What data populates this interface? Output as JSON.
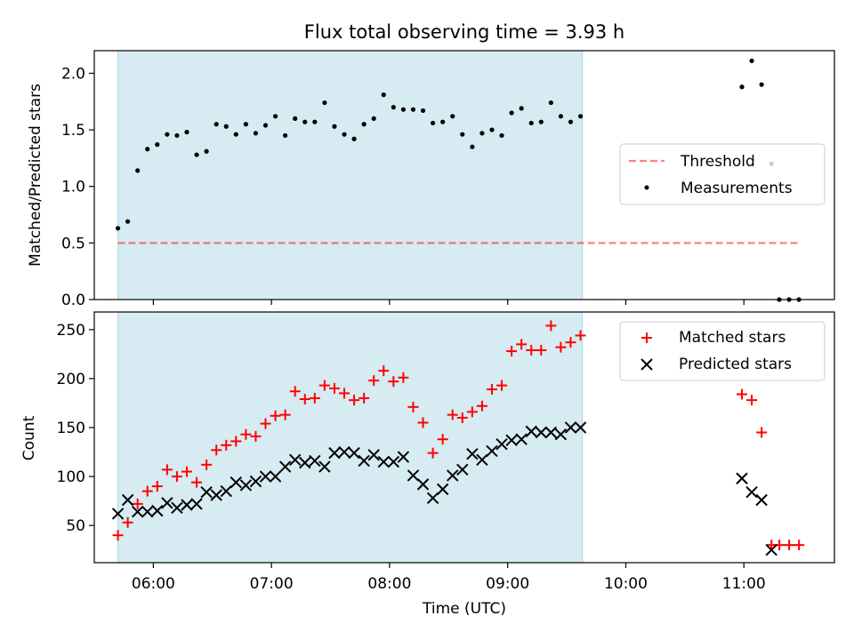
{
  "figure_title": "Flux total observing time = 3.93 h",
  "colors": {
    "shade": "#add8e6",
    "threshold": "#ff0000",
    "matched": "#ff0000",
    "predicted": "#000000",
    "measurement": "#000000"
  },
  "chart_data": [
    {
      "type": "scatter",
      "x_type": "time",
      "xlim": [
        "05:30",
        "11:46"
      ],
      "ylim": [
        0,
        2.2
      ],
      "ylabel": "Matched/Predicted stars",
      "yticks": [
        "0.0",
        "0.5",
        "1.0",
        "1.5",
        "2.0"
      ],
      "y_tick_values": [
        0,
        0.5,
        1.0,
        1.5,
        2.0
      ],
      "shaded_span": [
        "05:42",
        "09:38"
      ],
      "legend_position": "center right",
      "threshold": {
        "name": "Threshold",
        "value": 0.5,
        "x": [
          "05:42",
          "11:28"
        ],
        "style": "dashed"
      },
      "series": [
        {
          "name": "Measurements",
          "x": [
            "05:42",
            "05:47",
            "05:52",
            "05:57",
            "06:02",
            "06:07",
            "06:12",
            "06:17",
            "06:22",
            "06:27",
            "06:32",
            "06:37",
            "06:42",
            "06:47",
            "06:52",
            "06:57",
            "07:02",
            "07:07",
            "07:12",
            "07:17",
            "07:22",
            "07:27",
            "07:32",
            "07:37",
            "07:42",
            "07:47",
            "07:52",
            "07:57",
            "08:02",
            "08:07",
            "08:12",
            "08:17",
            "08:22",
            "08:27",
            "08:32",
            "08:37",
            "08:42",
            "08:47",
            "08:52",
            "08:57",
            "09:02",
            "09:07",
            "09:12",
            "09:17",
            "09:22",
            "09:27",
            "09:32",
            "09:37",
            "10:59",
            "11:04",
            "11:09",
            "11:14",
            "11:18",
            "11:23",
            "11:28"
          ],
          "y": [
            0.63,
            0.69,
            1.14,
            1.33,
            1.37,
            1.46,
            1.45,
            1.48,
            1.28,
            1.31,
            1.55,
            1.53,
            1.46,
            1.55,
            1.47,
            1.54,
            1.62,
            1.45,
            1.6,
            1.57,
            1.57,
            1.74,
            1.53,
            1.46,
            1.42,
            1.55,
            1.6,
            1.81,
            1.7,
            1.68,
            1.68,
            1.67,
            1.56,
            1.57,
            1.62,
            1.46,
            1.35,
            1.47,
            1.5,
            1.45,
            1.65,
            1.69,
            1.56,
            1.57,
            1.74,
            1.62,
            1.57,
            1.62,
            1.88,
            2.11,
            1.9,
            1.2,
            0.0,
            0.0,
            0.0
          ]
        }
      ]
    },
    {
      "type": "scatter",
      "x_type": "time",
      "xlim": [
        "05:30",
        "11:46"
      ],
      "ylim": [
        12,
        268
      ],
      "xlabel": "Time (UTC)",
      "ylabel": "Count",
      "xticks": [
        "06:00",
        "07:00",
        "08:00",
        "09:00",
        "10:00",
        "11:00"
      ],
      "yticks": [
        "50",
        "100",
        "150",
        "200",
        "250"
      ],
      "y_tick_values": [
        50,
        100,
        150,
        200,
        250
      ],
      "shaded_span": [
        "05:42",
        "09:38"
      ],
      "legend_position": "upper right",
      "series": [
        {
          "name": "Matched stars",
          "marker": "+",
          "x": [
            "05:42",
            "05:47",
            "05:52",
            "05:57",
            "06:02",
            "06:07",
            "06:12",
            "06:17",
            "06:22",
            "06:27",
            "06:32",
            "06:37",
            "06:42",
            "06:47",
            "06:52",
            "06:57",
            "07:02",
            "07:07",
            "07:12",
            "07:17",
            "07:22",
            "07:27",
            "07:32",
            "07:37",
            "07:42",
            "07:47",
            "07:52",
            "07:57",
            "08:02",
            "08:07",
            "08:12",
            "08:17",
            "08:22",
            "08:27",
            "08:32",
            "08:37",
            "08:42",
            "08:47",
            "08:52",
            "08:57",
            "09:02",
            "09:07",
            "09:12",
            "09:17",
            "09:22",
            "09:27",
            "09:32",
            "09:37",
            "10:59",
            "11:04",
            "11:09",
            "11:14",
            "11:18",
            "11:23",
            "11:28"
          ],
          "y": [
            40,
            53,
            72,
            85,
            90,
            107,
            100,
            105,
            94,
            112,
            127,
            132,
            136,
            143,
            141,
            154,
            162,
            163,
            187,
            179,
            180,
            193,
            190,
            185,
            178,
            180,
            198,
            208,
            197,
            201,
            171,
            155,
            124,
            138,
            163,
            160,
            166,
            172,
            189,
            193,
            228,
            235,
            229,
            229,
            254,
            232,
            237,
            244,
            184,
            178,
            145,
            30,
            30,
            30,
            30
          ]
        },
        {
          "name": "Predicted stars",
          "marker": "x",
          "x": [
            "05:42",
            "05:47",
            "05:52",
            "05:57",
            "06:02",
            "06:07",
            "06:12",
            "06:17",
            "06:22",
            "06:27",
            "06:32",
            "06:37",
            "06:42",
            "06:47",
            "06:52",
            "06:57",
            "07:02",
            "07:07",
            "07:12",
            "07:17",
            "07:22",
            "07:27",
            "07:32",
            "07:37",
            "07:42",
            "07:47",
            "07:52",
            "07:57",
            "08:02",
            "08:07",
            "08:12",
            "08:17",
            "08:22",
            "08:27",
            "08:32",
            "08:37",
            "08:42",
            "08:47",
            "08:52",
            "08:57",
            "09:02",
            "09:07",
            "09:12",
            "09:17",
            "09:22",
            "09:27",
            "09:32",
            "09:37",
            "10:59",
            "11:04",
            "11:09",
            "11:14"
          ],
          "y": [
            62,
            76,
            64,
            64,
            65,
            73,
            68,
            71,
            72,
            84,
            81,
            85,
            94,
            91,
            95,
            100,
            100,
            110,
            117,
            114,
            116,
            110,
            124,
            125,
            124,
            116,
            122,
            115,
            115,
            120,
            101,
            92,
            78,
            87,
            101,
            107,
            123,
            117,
            126,
            133,
            137,
            138,
            146,
            145,
            145,
            143,
            150,
            150,
            98,
            84,
            76,
            25
          ]
        }
      ]
    }
  ]
}
